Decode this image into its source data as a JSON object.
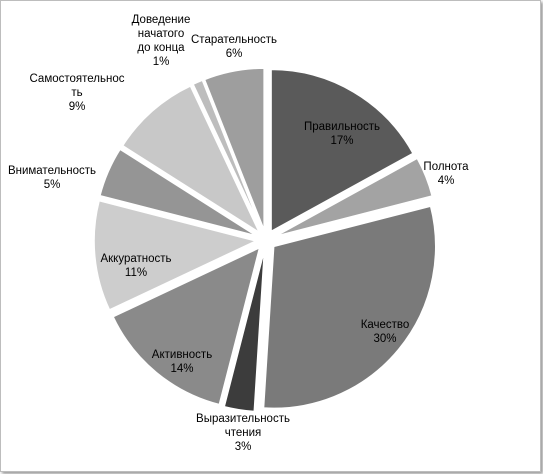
{
  "chart_data": {
    "type": "pie",
    "exploded": true,
    "slices": [
      {
        "lines": [
          "Правильность"
        ],
        "pct": "17%",
        "value": 17,
        "color": "#5a5a5a",
        "text_color": "#000000"
      },
      {
        "lines": [
          "Полнота"
        ],
        "pct": "4%",
        "value": 4,
        "color": "#a3a3a3",
        "text_color": "#000000"
      },
      {
        "lines": [
          "Качество"
        ],
        "pct": "30%",
        "value": 30,
        "color": "#7a7a7a",
        "text_color": "#000000"
      },
      {
        "lines": [
          "Выразительность",
          "чтения"
        ],
        "pct": "3%",
        "value": 3,
        "color": "#3c3c3c",
        "text_color": "#000000"
      },
      {
        "lines": [
          "Активность"
        ],
        "pct": "14%",
        "value": 14,
        "color": "#8a8a8a",
        "text_color": "#000000"
      },
      {
        "lines": [
          "Аккуратность"
        ],
        "pct": "11%",
        "value": 11,
        "color": "#cdcdcd",
        "text_color": "#000000"
      },
      {
        "lines": [
          "Внимательность"
        ],
        "pct": "5%",
        "value": 5,
        "color": "#959595",
        "text_color": "#000000"
      },
      {
        "lines": [
          "Самостоятельнос",
          "ть"
        ],
        "pct": "9%",
        "value": 9,
        "color": "#c8c8c8",
        "text_color": "#000000"
      },
      {
        "lines": [
          "Доведение",
          "начатого",
          "до конца"
        ],
        "pct": "1%",
        "value": 1,
        "color": "#bdbdbd",
        "text_color": "#000000"
      },
      {
        "lines": [
          "Старательность"
        ],
        "pct": "6%",
        "value": 6,
        "color": "#9e9e9e",
        "text_color": "#000000"
      }
    ]
  }
}
